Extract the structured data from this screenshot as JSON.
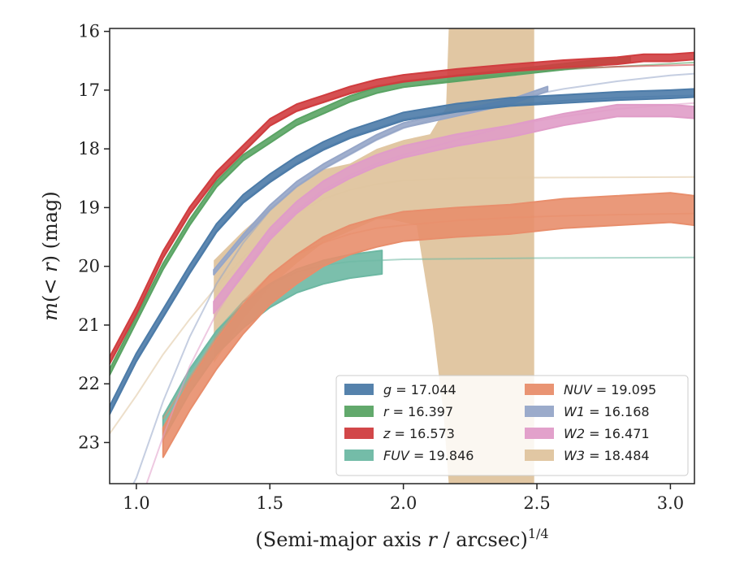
{
  "chart_data": {
    "type": "line",
    "xlabel_prefix": "(Semi-major axis ",
    "xlabel_var": "r",
    "xlabel_mid": " / arcsec)",
    "xlabel_sup": "1/4",
    "ylabel_prefix": "m(< ",
    "ylabel_var": "r",
    "ylabel_suffix": ") (mag)",
    "xlim": [
      0.9,
      3.09
    ],
    "ylim": [
      23.7,
      15.95
    ],
    "xticks": [
      1.0,
      1.5,
      2.0,
      2.5,
      3.0
    ],
    "xtick_labels": [
      "1.0",
      "1.5",
      "2.0",
      "2.5",
      "3.0"
    ],
    "yticks": [
      16,
      17,
      18,
      19,
      20,
      21,
      22,
      23
    ],
    "ytick_labels": [
      "16",
      "17",
      "18",
      "19",
      "20",
      "21",
      "22",
      "23"
    ],
    "legend_position": "lower-right",
    "series": [
      {
        "key": "g",
        "name": "g = 17.044",
        "legend_label": "= 17.044",
        "legend_var": "g",
        "color": "#4c7ba8",
        "data": [
          [
            0.9,
            22.45
          ],
          [
            1.0,
            21.55
          ],
          [
            1.1,
            20.8
          ],
          [
            1.2,
            20.05
          ],
          [
            1.3,
            19.35
          ],
          [
            1.4,
            18.85
          ],
          [
            1.5,
            18.5
          ],
          [
            1.6,
            18.2
          ],
          [
            1.7,
            17.95
          ],
          [
            1.8,
            17.75
          ],
          [
            1.9,
            17.6
          ],
          [
            2.0,
            17.45
          ],
          [
            2.2,
            17.3
          ],
          [
            2.4,
            17.2
          ],
          [
            2.6,
            17.15
          ],
          [
            2.8,
            17.1
          ],
          [
            3.0,
            17.07
          ],
          [
            3.09,
            17.05
          ]
        ],
        "band": 0.07,
        "model": [
          [
            0.9,
            22.5
          ],
          [
            1.0,
            21.6
          ],
          [
            1.1,
            20.85
          ],
          [
            1.2,
            20.1
          ],
          [
            1.3,
            19.4
          ],
          [
            1.4,
            18.9
          ],
          [
            1.5,
            18.55
          ],
          [
            1.6,
            18.25
          ],
          [
            1.7,
            18.0
          ],
          [
            1.8,
            17.8
          ],
          [
            1.9,
            17.65
          ],
          [
            2.0,
            17.5
          ],
          [
            2.2,
            17.35
          ],
          [
            2.4,
            17.25
          ],
          [
            2.6,
            17.18
          ],
          [
            2.8,
            17.13
          ],
          [
            3.0,
            17.1
          ],
          [
            3.09,
            17.09
          ]
        ]
      },
      {
        "key": "r",
        "name": "r = 16.397",
        "legend_label": "= 16.397",
        "legend_var": "r",
        "color": "#5aa464",
        "data": [
          [
            0.9,
            21.8
          ],
          [
            1.0,
            20.9
          ],
          [
            1.1,
            20.0
          ],
          [
            1.2,
            19.25
          ],
          [
            1.3,
            18.6
          ],
          [
            1.4,
            18.15
          ],
          [
            1.5,
            17.85
          ],
          [
            1.6,
            17.55
          ],
          [
            1.7,
            17.35
          ],
          [
            1.8,
            17.15
          ],
          [
            1.9,
            17.0
          ],
          [
            2.0,
            16.9
          ],
          [
            2.2,
            16.8
          ],
          [
            2.4,
            16.7
          ],
          [
            2.6,
            16.6
          ],
          [
            2.85,
            16.47
          ]
        ],
        "band": 0.05,
        "model": [
          [
            0.9,
            21.85
          ],
          [
            1.0,
            20.95
          ],
          [
            1.1,
            20.05
          ],
          [
            1.2,
            19.3
          ],
          [
            1.3,
            18.65
          ],
          [
            1.4,
            18.2
          ],
          [
            1.5,
            17.9
          ],
          [
            1.6,
            17.6
          ],
          [
            1.7,
            17.4
          ],
          [
            1.8,
            17.2
          ],
          [
            1.9,
            17.05
          ],
          [
            2.0,
            16.95
          ],
          [
            2.2,
            16.83
          ],
          [
            2.4,
            16.72
          ],
          [
            2.6,
            16.65
          ],
          [
            2.8,
            16.6
          ],
          [
            3.0,
            16.55
          ],
          [
            3.09,
            16.53
          ]
        ]
      },
      {
        "key": "z",
        "name": "z = 16.573",
        "legend_label": "= 16.573",
        "legend_var": "z",
        "color": "#d03d3f",
        "data": [
          [
            0.9,
            21.6
          ],
          [
            1.0,
            20.75
          ],
          [
            1.1,
            19.8
          ],
          [
            1.2,
            19.05
          ],
          [
            1.3,
            18.45
          ],
          [
            1.4,
            18.0
          ],
          [
            1.5,
            17.55
          ],
          [
            1.6,
            17.3
          ],
          [
            1.7,
            17.15
          ],
          [
            1.8,
            17.0
          ],
          [
            1.9,
            16.88
          ],
          [
            2.0,
            16.8
          ],
          [
            2.2,
            16.7
          ],
          [
            2.4,
            16.62
          ],
          [
            2.6,
            16.55
          ],
          [
            2.8,
            16.5
          ],
          [
            2.9,
            16.45
          ],
          [
            3.0,
            16.45
          ],
          [
            3.09,
            16.42
          ]
        ],
        "band": 0.06,
        "model": [
          [
            0.9,
            21.65
          ],
          [
            1.0,
            20.8
          ],
          [
            1.1,
            19.85
          ],
          [
            1.2,
            19.1
          ],
          [
            1.3,
            18.5
          ],
          [
            1.4,
            18.05
          ],
          [
            1.5,
            17.6
          ],
          [
            1.6,
            17.35
          ],
          [
            1.7,
            17.2
          ],
          [
            1.8,
            17.05
          ],
          [
            1.9,
            16.93
          ],
          [
            2.0,
            16.85
          ],
          [
            2.2,
            16.75
          ],
          [
            2.4,
            16.68
          ],
          [
            2.6,
            16.63
          ],
          [
            2.8,
            16.6
          ],
          [
            3.0,
            16.58
          ],
          [
            3.09,
            16.57
          ]
        ]
      },
      {
        "key": "FUV",
        "name": "FUV = 19.846",
        "legend_label": "= 19.846",
        "legend_var": "FUV",
        "color": "#6db8a3",
        "data": [
          [
            1.1,
            22.75
          ],
          [
            1.2,
            21.95
          ],
          [
            1.3,
            21.3
          ],
          [
            1.4,
            20.85
          ],
          [
            1.5,
            20.5
          ],
          [
            1.6,
            20.25
          ],
          [
            1.7,
            20.1
          ],
          [
            1.8,
            20.0
          ],
          [
            1.92,
            19.93
          ]
        ],
        "band": 0.2,
        "model": [
          [
            1.2,
            21.8
          ],
          [
            1.3,
            21.1
          ],
          [
            1.4,
            20.6
          ],
          [
            1.5,
            20.3
          ],
          [
            1.6,
            20.1
          ],
          [
            1.7,
            19.98
          ],
          [
            1.8,
            19.92
          ],
          [
            2.0,
            19.88
          ],
          [
            2.5,
            19.86
          ],
          [
            3.09,
            19.85
          ]
        ]
      },
      {
        "key": "NUV",
        "name": "NUV = 19.095",
        "legend_label": "= 19.095",
        "legend_var": "NUV",
        "color": "#e88e6c",
        "data": [
          [
            1.1,
            23.0
          ],
          [
            1.2,
            22.2
          ],
          [
            1.3,
            21.5
          ],
          [
            1.4,
            20.9
          ],
          [
            1.5,
            20.4
          ],
          [
            1.6,
            20.05
          ],
          [
            1.7,
            19.75
          ],
          [
            1.8,
            19.55
          ],
          [
            1.9,
            19.42
          ],
          [
            2.0,
            19.32
          ],
          [
            2.2,
            19.25
          ],
          [
            2.4,
            19.2
          ],
          [
            2.6,
            19.1
          ],
          [
            2.8,
            19.05
          ],
          [
            3.0,
            19.0
          ],
          [
            3.09,
            19.05
          ]
        ],
        "band": 0.25,
        "model": [
          [
            1.1,
            22.6
          ],
          [
            1.2,
            21.9
          ],
          [
            1.3,
            21.2
          ],
          [
            1.4,
            20.6
          ],
          [
            1.5,
            20.15
          ],
          [
            1.6,
            19.8
          ],
          [
            1.7,
            19.6
          ],
          [
            1.8,
            19.45
          ],
          [
            1.9,
            19.35
          ],
          [
            2.0,
            19.3
          ],
          [
            2.2,
            19.22
          ],
          [
            2.4,
            19.17
          ],
          [
            2.6,
            19.14
          ],
          [
            2.8,
            19.12
          ],
          [
            3.09,
            19.1
          ]
        ]
      },
      {
        "key": "W1",
        "name": "W1 = 16.168",
        "legend_label": "= 16.168",
        "legend_var": "W1",
        "color": "#96a6c8",
        "data": [
          [
            1.29,
            20.1
          ],
          [
            1.4,
            19.5
          ],
          [
            1.5,
            19.0
          ],
          [
            1.6,
            18.6
          ],
          [
            1.7,
            18.3
          ],
          [
            1.8,
            18.05
          ],
          [
            1.9,
            17.8
          ],
          [
            2.0,
            17.6
          ],
          [
            2.2,
            17.4
          ],
          [
            2.4,
            17.2
          ],
          [
            2.54,
            16.98
          ]
        ],
        "band": 0.04,
        "model": [
          [
            0.9,
            24.5
          ],
          [
            1.0,
            23.6
          ],
          [
            1.1,
            22.3
          ],
          [
            1.2,
            21.2
          ],
          [
            1.3,
            20.3
          ],
          [
            1.4,
            19.6
          ],
          [
            1.5,
            19.05
          ],
          [
            1.6,
            18.65
          ],
          [
            1.7,
            18.35
          ],
          [
            1.8,
            18.1
          ],
          [
            1.9,
            17.85
          ],
          [
            2.0,
            17.65
          ],
          [
            2.2,
            17.35
          ],
          [
            2.4,
            17.15
          ],
          [
            2.6,
            16.98
          ],
          [
            2.8,
            16.85
          ],
          [
            3.0,
            16.75
          ],
          [
            3.09,
            16.72
          ]
        ]
      },
      {
        "key": "W2",
        "name": "W2 = 16.471",
        "legend_label": "= 16.471",
        "legend_var": "W2",
        "color": "#e09cc8",
        "data": [
          [
            1.29,
            20.7
          ],
          [
            1.4,
            20.05
          ],
          [
            1.5,
            19.45
          ],
          [
            1.6,
            19.0
          ],
          [
            1.7,
            18.65
          ],
          [
            1.8,
            18.4
          ],
          [
            1.9,
            18.2
          ],
          [
            2.0,
            18.05
          ],
          [
            2.2,
            17.85
          ],
          [
            2.4,
            17.7
          ],
          [
            2.6,
            17.5
          ],
          [
            2.8,
            17.35
          ],
          [
            3.0,
            17.35
          ],
          [
            3.09,
            17.38
          ]
        ],
        "band": 0.1,
        "model": [
          [
            0.9,
            25.0
          ],
          [
            1.0,
            24.2
          ],
          [
            1.1,
            22.9
          ],
          [
            1.2,
            21.7
          ],
          [
            1.3,
            20.8
          ],
          [
            1.4,
            20.1
          ],
          [
            1.5,
            19.5
          ],
          [
            1.6,
            19.05
          ],
          [
            1.7,
            18.7
          ],
          [
            1.8,
            18.45
          ],
          [
            1.9,
            18.25
          ],
          [
            2.0,
            18.1
          ],
          [
            2.2,
            17.85
          ],
          [
            2.4,
            17.6
          ],
          [
            2.6,
            17.45
          ],
          [
            2.8,
            17.32
          ],
          [
            3.0,
            17.25
          ],
          [
            3.09,
            17.22
          ]
        ]
      },
      {
        "key": "W3",
        "name": "W3 = 18.484",
        "legend_label": "= 18.484",
        "legend_var": "W3",
        "color": "#dfc49e",
        "band_upper": [
          [
            1.29,
            19.9
          ],
          [
            1.4,
            19.4
          ],
          [
            1.5,
            19.0
          ],
          [
            1.6,
            18.65
          ],
          [
            1.7,
            18.35
          ],
          [
            1.8,
            18.25
          ],
          [
            1.9,
            18.0
          ],
          [
            2.0,
            17.85
          ],
          [
            2.1,
            17.75
          ],
          [
            2.16,
            17.3
          ],
          [
            2.17,
            15.95
          ],
          [
            2.49,
            15.95
          ]
        ],
        "band_lower": [
          [
            1.29,
            21.65
          ],
          [
            1.4,
            20.9
          ],
          [
            1.5,
            20.35
          ],
          [
            1.6,
            19.95
          ],
          [
            1.7,
            19.6
          ],
          [
            1.8,
            19.4
          ],
          [
            1.9,
            19.2
          ],
          [
            1.95,
            19.2
          ],
          [
            2.05,
            19.3
          ],
          [
            2.11,
            21.0
          ],
          [
            2.15,
            22.5
          ],
          [
            2.17,
            23.7
          ],
          [
            2.49,
            23.7
          ]
        ],
        "model": [
          [
            0.9,
            22.85
          ],
          [
            1.0,
            22.2
          ],
          [
            1.1,
            21.5
          ],
          [
            1.2,
            20.9
          ],
          [
            1.3,
            20.35
          ],
          [
            1.4,
            19.85
          ],
          [
            1.5,
            19.45
          ],
          [
            1.6,
            19.1
          ],
          [
            1.7,
            18.85
          ],
          [
            1.8,
            18.7
          ],
          [
            1.9,
            18.6
          ],
          [
            2.0,
            18.54
          ],
          [
            2.2,
            18.5
          ],
          [
            2.5,
            18.49
          ],
          [
            3.09,
            18.48
          ]
        ]
      }
    ]
  }
}
